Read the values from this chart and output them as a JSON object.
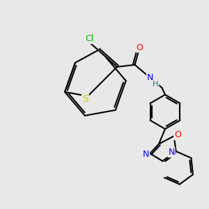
{
  "bg_color": "#e8e8e8",
  "bond_color": "#000000",
  "bond_width": 1.5,
  "atom_colors": {
    "Cl": "#00bb00",
    "S": "#cccc00",
    "O_carbonyl": "#ff0000",
    "N": "#0000ff",
    "O_ring": "#ff0000",
    "H": "#008080"
  },
  "font_size": 9
}
